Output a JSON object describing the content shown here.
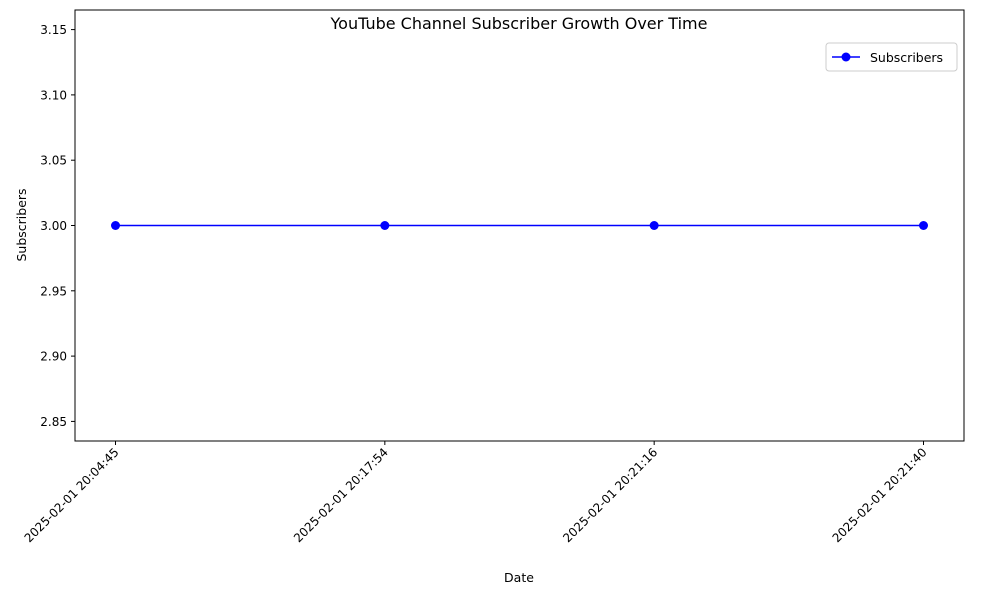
{
  "chart_data": {
    "type": "line",
    "title": "YouTube Channel Subscriber Growth Over Time",
    "xlabel": "Date",
    "ylabel": "Subscribers",
    "categories": [
      "2025-02-01 20:04:45",
      "2025-02-01 20:17:54",
      "2025-02-01 20:21:16",
      "2025-02-01 20:21:40"
    ],
    "series": [
      {
        "name": "Subscribers",
        "values": [
          3,
          3,
          3,
          3
        ],
        "color": "#0000ff",
        "marker": "circle"
      }
    ],
    "ylim": [
      2.835,
      3.165
    ],
    "yticks": [
      2.85,
      2.9,
      2.95,
      3.0,
      3.05,
      3.1,
      3.15
    ],
    "ytick_labels": [
      "2.85",
      "2.90",
      "2.95",
      "3.00",
      "3.05",
      "3.10",
      "3.15"
    ],
    "xtick_rotation": 45,
    "grid": false,
    "legend": "top-right"
  }
}
